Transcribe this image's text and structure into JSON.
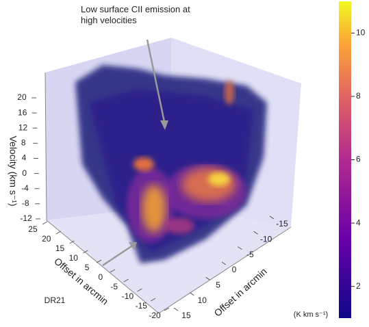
{
  "chart_data": {
    "type": "volume",
    "annotation": "Low surface CII emission at high velocities",
    "label": "DR21",
    "zlabel": "Velocity (km s⁻¹)",
    "zlim": [
      -14,
      24
    ],
    "zticks": [
      20,
      16,
      12,
      8,
      4,
      0,
      -4,
      -8,
      -12
    ],
    "xlabel": "Offset in arcmin",
    "xlim": [
      26,
      -21
    ],
    "xticks": [
      25,
      20,
      15,
      10,
      5,
      0,
      -5,
      -10,
      -15,
      -20
    ],
    "ylabel": "Offset in arcmin",
    "ylim": [
      -17,
      16
    ],
    "yticks": [
      -15,
      -10,
      -5,
      0,
      5,
      10,
      15
    ],
    "colorbar": {
      "label": "(K km s⁻¹)",
      "lim": [
        1,
        11
      ],
      "ticks": [
        2,
        4,
        6,
        8,
        10
      ]
    }
  }
}
